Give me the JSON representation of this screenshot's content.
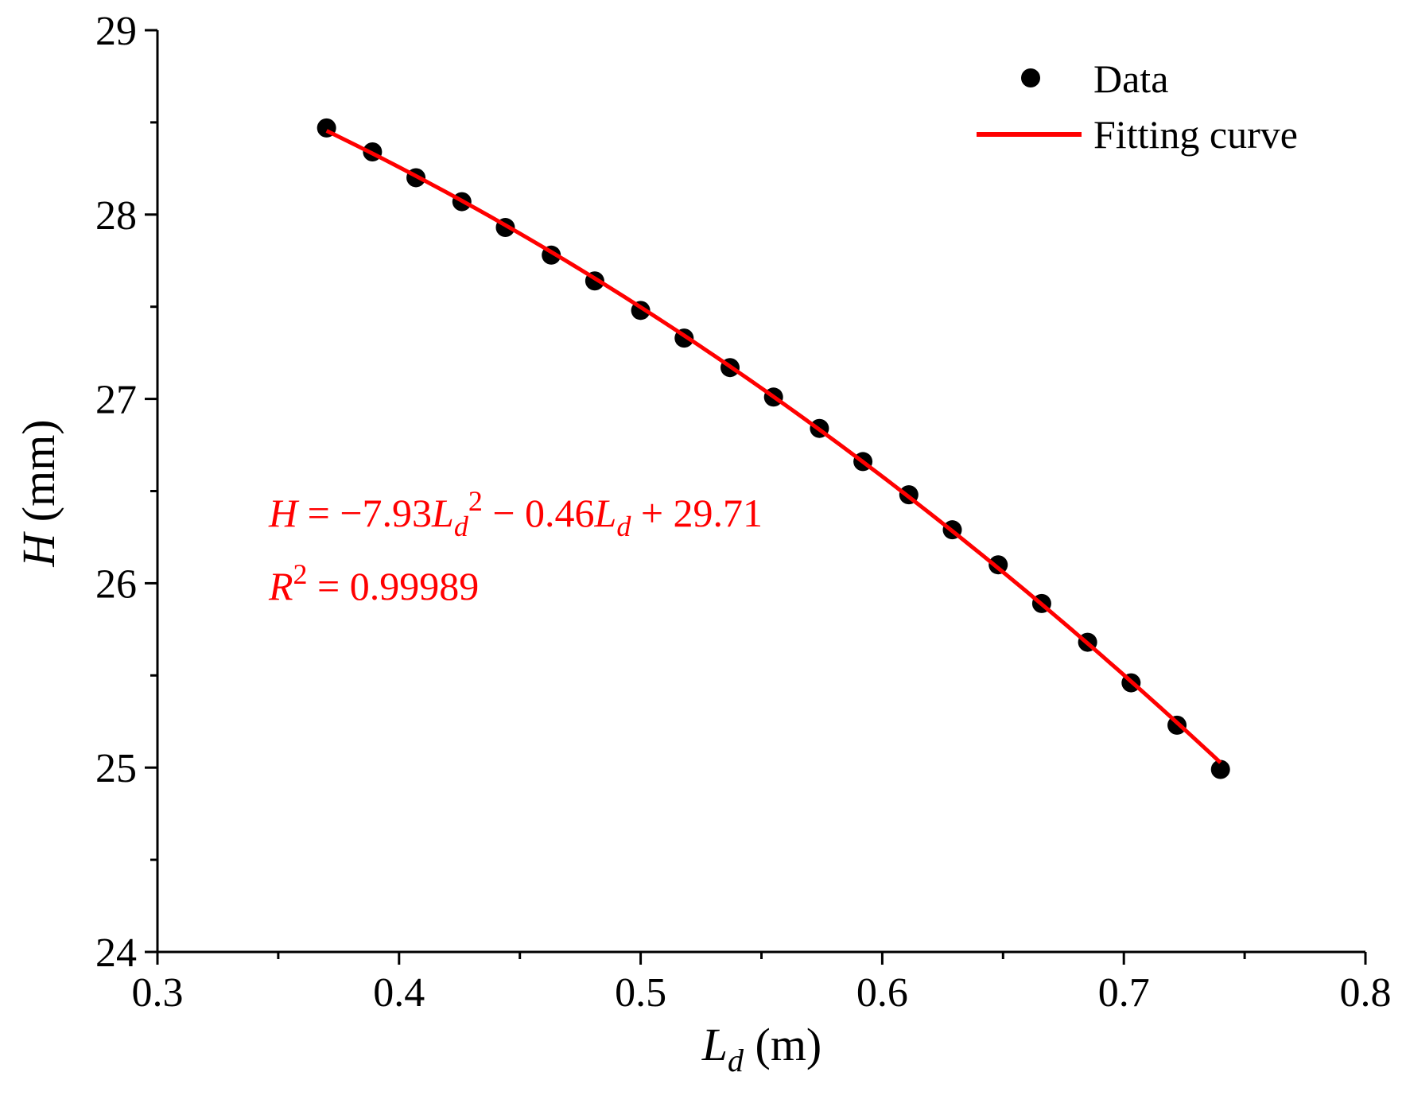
{
  "chart_data": {
    "type": "scatter",
    "title": "",
    "xlabel": {
      "main": "L",
      "sub": "d",
      "unit": " (m)"
    },
    "ylabel": {
      "main": "H",
      "unit": " (mm)"
    },
    "xlim": [
      0.3,
      0.8
    ],
    "ylim": [
      24,
      29
    ],
    "xticks": [
      "0.3",
      "0.4",
      "0.5",
      "0.6",
      "0.7",
      "0.8"
    ],
    "yticks": [
      "24",
      "25",
      "26",
      "27",
      "28",
      "29"
    ],
    "series": [
      {
        "name": "Data",
        "kind": "scatter",
        "color": "#000000",
        "x": [
          0.37,
          0.389,
          0.407,
          0.426,
          0.444,
          0.463,
          0.481,
          0.5,
          0.518,
          0.537,
          0.555,
          0.574,
          0.592,
          0.611,
          0.629,
          0.648,
          0.666,
          0.685,
          0.703,
          0.722,
          0.74
        ],
        "y": [
          28.47,
          28.34,
          28.2,
          28.07,
          27.93,
          27.78,
          27.64,
          27.48,
          27.33,
          27.17,
          27.01,
          26.84,
          26.66,
          26.48,
          26.29,
          26.1,
          25.89,
          25.68,
          25.46,
          25.23,
          24.99
        ]
      },
      {
        "name": "Fitting curve",
        "kind": "line",
        "color": "#ff0000",
        "coefficients": {
          "a": -7.93,
          "b": -0.46,
          "c": 29.71
        },
        "x_range": [
          0.37,
          0.74
        ]
      }
    ],
    "legend": {
      "position": "top-right",
      "entries": [
        "Data",
        "Fitting curve"
      ]
    },
    "annotations": {
      "equation": {
        "lhs": "H",
        "eq": " = ",
        "coef1": "−7.93",
        "var": "L",
        "sub": "d",
        "sup": "2",
        "rest1": " − 0.46",
        "var2": "L",
        "sub2": "d",
        "rest2": " + 29.71"
      },
      "r2": {
        "lhs": "R",
        "sup": "2",
        "rest": " = 0.99989"
      }
    }
  }
}
